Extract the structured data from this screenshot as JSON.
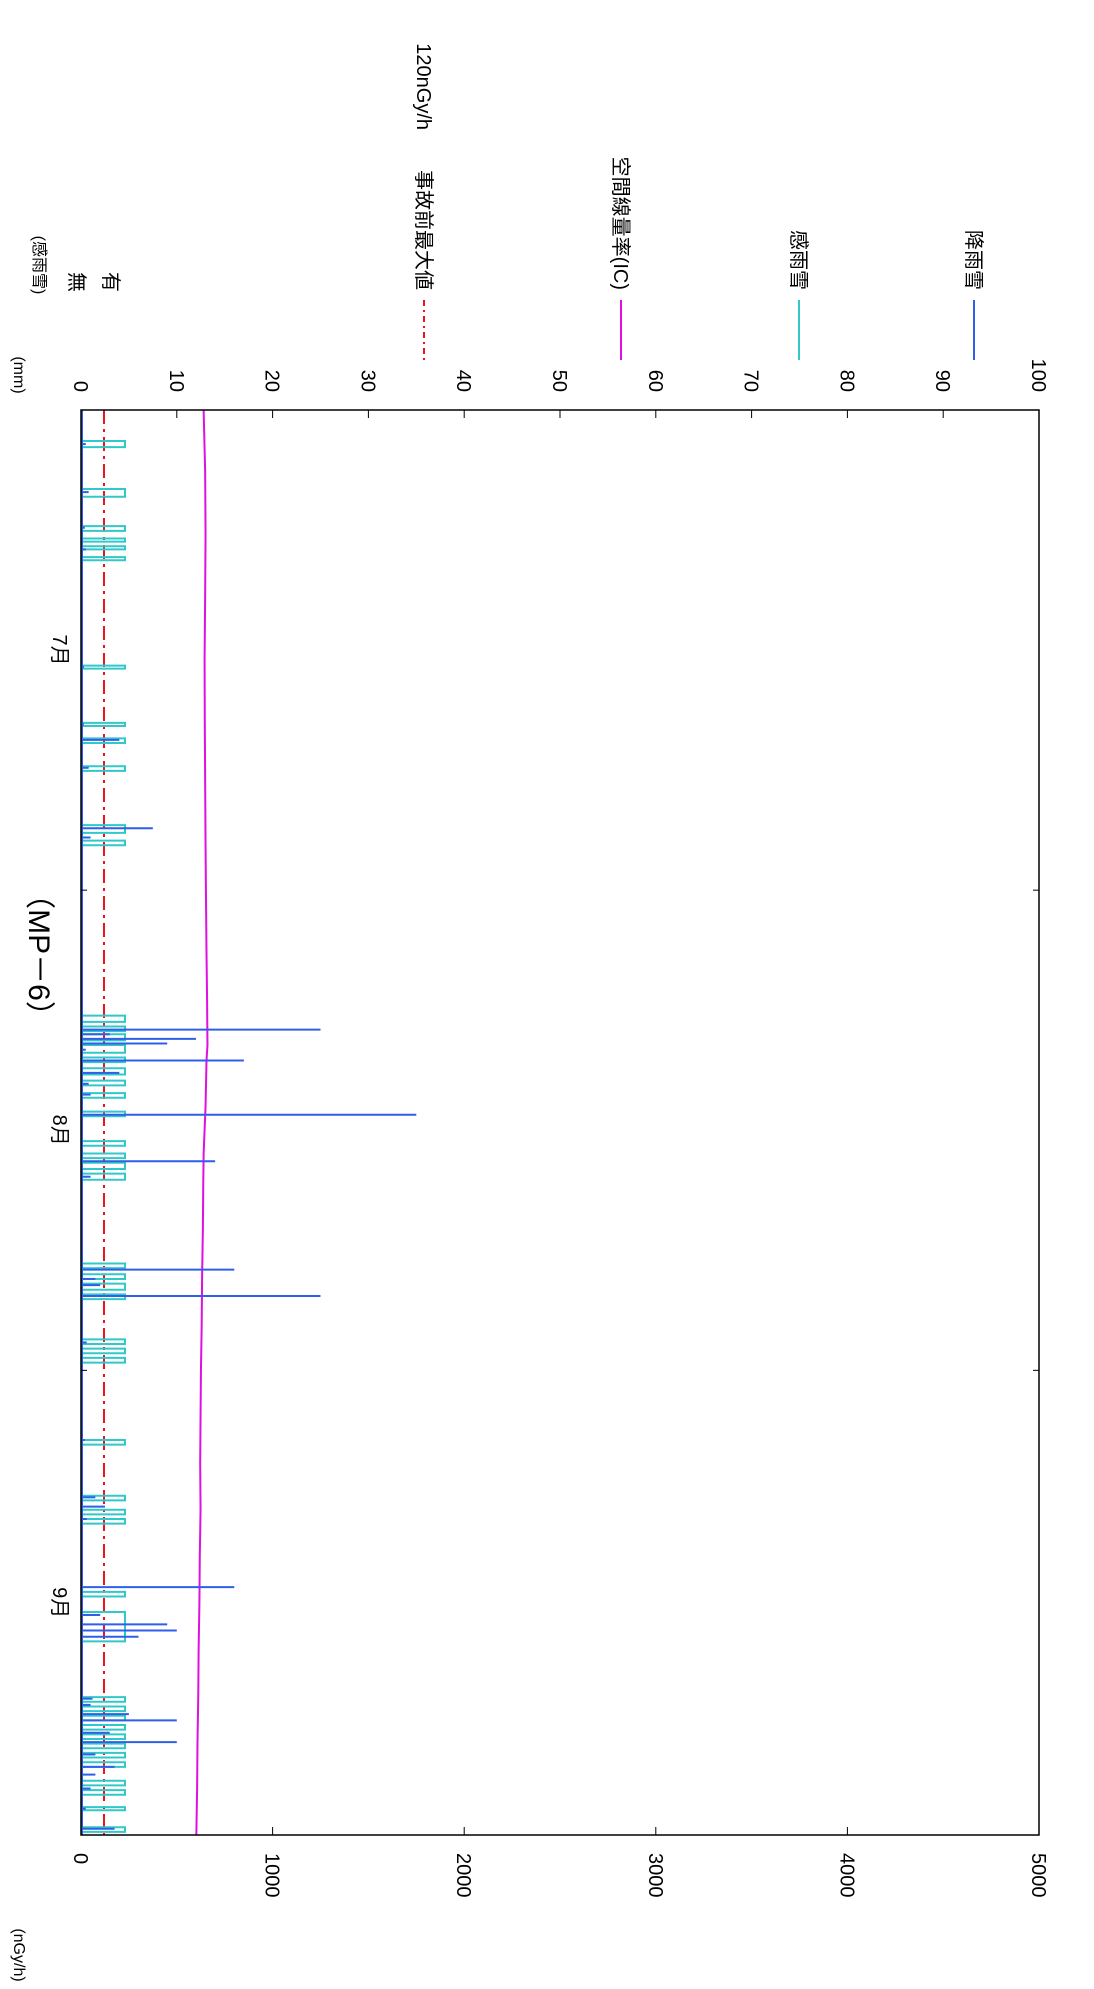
{
  "chart_data": {
    "type": "line",
    "title": "（MP－6）",
    "left_axis": {
      "unit": "(nGy/h)",
      "ylim": [
        0,
        5000
      ],
      "ticks": [
        "0",
        "1000",
        "2000",
        "3000",
        "4000",
        "5000"
      ]
    },
    "right_axis": {
      "unit": "(mm)",
      "ylim": [
        0,
        100
      ],
      "ticks": [
        "0",
        "10",
        "20",
        "30",
        "40",
        "50",
        "60",
        "70",
        "80",
        "90",
        "100"
      ]
    },
    "sensor_axis": {
      "unit": "(感雨雪)",
      "labels": [
        "無",
        "有"
      ]
    },
    "x_axis": {
      "range_days": [
        0,
        92
      ],
      "months": [
        {
          "label": "7月",
          "day": 15.5
        },
        {
          "label": "8月",
          "day": 46.5
        },
        {
          "label": "9月",
          "day": 77
        }
      ],
      "boundaries": [
        31,
        62
      ]
    },
    "series": [
      {
        "name": "事故前最大値",
        "sub": "120nGy/h",
        "color": "#e8141e",
        "style": "dashdot",
        "constant_value": 120
      },
      {
        "name": "空間線量率(IC)",
        "color": "#e010e0",
        "style": "solid",
        "points": [
          [
            0,
            640
          ],
          [
            4,
            648
          ],
          [
            8,
            650
          ],
          [
            12,
            648
          ],
          [
            16,
            645
          ],
          [
            20,
            646
          ],
          [
            24,
            648
          ],
          [
            28,
            650
          ],
          [
            31,
            652
          ],
          [
            35,
            655
          ],
          [
            38,
            658
          ],
          [
            41,
            660
          ],
          [
            42,
            655
          ],
          [
            45,
            650
          ],
          [
            48,
            640
          ],
          [
            50,
            638
          ],
          [
            53,
            636
          ],
          [
            56,
            632
          ],
          [
            59,
            630
          ],
          [
            62,
            626
          ],
          [
            65,
            624
          ],
          [
            68,
            622
          ],
          [
            71,
            624
          ],
          [
            74,
            620
          ],
          [
            77,
            618
          ],
          [
            80,
            614
          ],
          [
            83,
            612
          ],
          [
            86,
            608
          ],
          [
            89,
            606
          ],
          [
            92,
            602
          ]
        ]
      },
      {
        "name": "感雨雪",
        "color": "#30c8c8",
        "style": "step",
        "events": [
          [
            2,
            2.4
          ],
          [
            5.1,
            5.6
          ],
          [
            7.5,
            7.8
          ],
          [
            8.3,
            8.5
          ],
          [
            8.8,
            9.0
          ],
          [
            9.5,
            9.7
          ],
          [
            16.5,
            16.7
          ],
          [
            20.2,
            20.4
          ],
          [
            21.2,
            21.5
          ],
          [
            23,
            23.3
          ],
          [
            26.8,
            27.3
          ],
          [
            27.8,
            28.1
          ],
          [
            39.1,
            39.5
          ],
          [
            39.8,
            40.1
          ],
          [
            40.3,
            40.7
          ],
          [
            41,
            41.5
          ],
          [
            41.8,
            42.1
          ],
          [
            42.5,
            42.9
          ],
          [
            43.3,
            43.6
          ],
          [
            44.1,
            44.4
          ],
          [
            45.3,
            45.6
          ],
          [
            47.2,
            47.5
          ],
          [
            48,
            48.3
          ],
          [
            48.6,
            49
          ],
          [
            49.3,
            49.7
          ],
          [
            55.1,
            55.4
          ],
          [
            55.8,
            56.1
          ],
          [
            56.4,
            56.8
          ],
          [
            57.1,
            57.4
          ],
          [
            60,
            60.3
          ],
          [
            60.6,
            60.9
          ],
          [
            61.2,
            61.5
          ],
          [
            66.5,
            66.8
          ],
          [
            70.1,
            70.4
          ],
          [
            71,
            71.3
          ],
          [
            71.6,
            71.9
          ],
          [
            76.3,
            76.6
          ],
          [
            77.6,
            79.5
          ],
          [
            83.1,
            83.4
          ],
          [
            83.7,
            84
          ],
          [
            84.3,
            84.6
          ],
          [
            84.9,
            85.2
          ],
          [
            85.5,
            85.8
          ],
          [
            86.1,
            86.4
          ],
          [
            86.7,
            87
          ],
          [
            87.3,
            87.6
          ],
          [
            88.5,
            88.8
          ],
          [
            89.1,
            89.4
          ],
          [
            90.2,
            90.4
          ],
          [
            91.5,
            91.8
          ]
        ]
      },
      {
        "name": "降雨雪",
        "color": "#2f5fe8",
        "style": "spike",
        "spikes": [
          [
            2.2,
            0.5
          ],
          [
            5.3,
            0.8
          ],
          [
            7.6,
            0.4
          ],
          [
            9.0,
            0.5
          ],
          [
            16.6,
            0.3
          ],
          [
            20.3,
            0.3
          ],
          [
            21.3,
            4.0
          ],
          [
            23.1,
            0.8
          ],
          [
            27.0,
            7.5
          ],
          [
            27.6,
            1.0
          ],
          [
            40.0,
            25.0
          ],
          [
            40.3,
            3.0
          ],
          [
            40.6,
            12.0
          ],
          [
            40.9,
            9.0
          ],
          [
            41.3,
            0.5
          ],
          [
            42.0,
            17.0
          ],
          [
            42.8,
            4.0
          ],
          [
            43.5,
            0.8
          ],
          [
            44.2,
            1.0
          ],
          [
            45.5,
            35.0
          ],
          [
            48.5,
            14.0
          ],
          [
            49.5,
            1.0
          ],
          [
            55.5,
            16.0
          ],
          [
            56.1,
            1.5
          ],
          [
            56.5,
            2.0
          ],
          [
            57.2,
            25.0
          ],
          [
            60.2,
            0.6
          ],
          [
            66.5,
            0.4
          ],
          [
            70.2,
            1.5
          ],
          [
            70.8,
            2.5
          ],
          [
            71.6,
            0.6
          ],
          [
            76.0,
            16.0
          ],
          [
            77.8,
            2.0
          ],
          [
            78.4,
            9.0
          ],
          [
            78.8,
            10.0
          ],
          [
            79.2,
            6.0
          ],
          [
            83.2,
            1.2
          ],
          [
            83.6,
            1.0
          ],
          [
            84.2,
            5.0
          ],
          [
            84.6,
            10.0
          ],
          [
            85.4,
            3.0
          ],
          [
            86.0,
            10.0
          ],
          [
            86.8,
            1.5
          ],
          [
            87.6,
            3.5
          ],
          [
            88.1,
            1.5
          ],
          [
            89.0,
            1.0
          ],
          [
            90.3,
            0.5
          ],
          [
            91.6,
            3.5
          ]
        ]
      }
    ]
  }
}
